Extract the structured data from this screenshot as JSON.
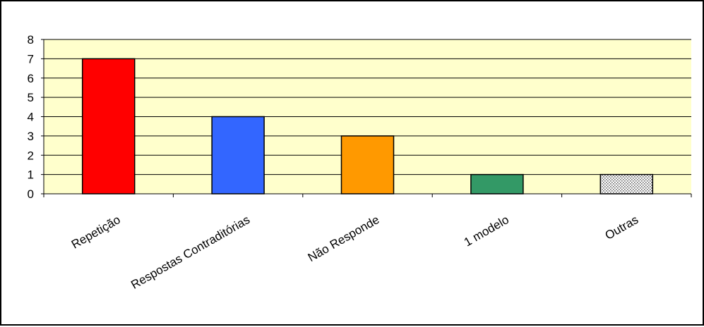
{
  "chart_data": {
    "type": "bar",
    "title": "",
    "xlabel": "",
    "ylabel": "",
    "categories": [
      "Repetição",
      "Respostas Contraditórias",
      "Não Responde",
      "1 modelo",
      "Outras"
    ],
    "values": [
      7,
      4,
      3,
      1,
      1
    ],
    "ylim": [
      0,
      8
    ],
    "yticks": [
      "0",
      "1",
      "2",
      "3",
      "4",
      "5",
      "6",
      "7",
      "8"
    ],
    "grid": true,
    "legend": "none",
    "colors": {
      "plot_background": "#FFFFCC",
      "bars": [
        "#FF0000",
        "#3366FF",
        "#FF9900",
        "#339966",
        "#DDDDDD"
      ],
      "last_bar_pattern": "dotted"
    }
  }
}
